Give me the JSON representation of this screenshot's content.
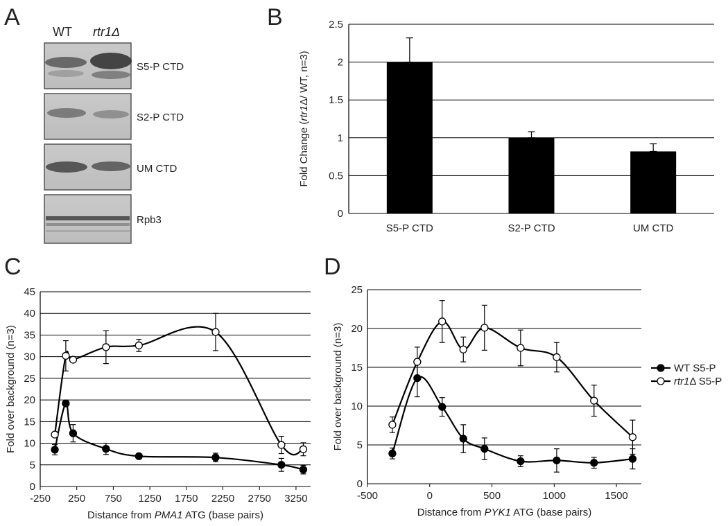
{
  "panels": {
    "A": "A",
    "B": "B",
    "C": "C",
    "D": "D"
  },
  "blot": {
    "lanes": [
      {
        "text": "WT",
        "italic": false
      },
      {
        "text": "rtr1Δ",
        "italic": true
      }
    ],
    "bands": [
      "S5-P CTD",
      "S2-P CTD",
      "UM CTD",
      "Rpb3"
    ]
  },
  "chart_data": [
    {
      "id": "B",
      "type": "bar",
      "categories": [
        "S5-P CTD",
        "S2-P CTD",
        "UM CTD"
      ],
      "values": [
        2.0,
        1.0,
        0.82
      ],
      "errors": [
        0.32,
        0.08,
        0.1
      ],
      "ylabel": {
        "pre": "Fold Change (",
        "ital": "rtr1",
        "post": "Δ/ WT, n=3)"
      },
      "ylim": [
        0,
        2.5
      ],
      "yticks": [
        0,
        0.5,
        1,
        1.5,
        2,
        2.5
      ],
      "ytick_labels": [
        "0",
        "0.5",
        "1",
        "1.5",
        "2",
        "2.5"
      ],
      "grid": true,
      "color": "#000000"
    },
    {
      "id": "C",
      "type": "line",
      "xlabel": {
        "pre": "Distance from ",
        "ital": "PMA1",
        "post": " ATG (base pairs)"
      },
      "ylabel": "Fold over background (n=3)",
      "xlim": [
        -250,
        3450
      ],
      "ylim": [
        0,
        45
      ],
      "xticks": [
        -250,
        250,
        750,
        1250,
        1750,
        2250,
        2750,
        3250
      ],
      "xtick_labels": [
        "-250",
        "250",
        "750",
        "1250",
        "1750",
        "2250",
        "2750",
        "3250"
      ],
      "yticks": [
        0,
        5,
        10,
        15,
        20,
        25,
        30,
        35,
        40,
        45
      ],
      "ytick_labels": [
        "0",
        "5",
        "10",
        "15",
        "20",
        "25",
        "30",
        "35",
        "40",
        "45"
      ],
      "grid": true,
      "series": [
        {
          "name": "WT S5-P",
          "marker": "filled",
          "x": [
            -50,
            100,
            200,
            650,
            1100,
            2150,
            3050,
            3350
          ],
          "y": [
            8.5,
            19.2,
            12.3,
            8.7,
            7.0,
            6.7,
            5.0,
            3.9
          ],
          "err": [
            1.2,
            0.4,
            2.0,
            1.3,
            0.3,
            1.0,
            1.5,
            1.0
          ]
        },
        {
          "name": "rtr1Δ S5-P",
          "marker": "open",
          "x": [
            -50,
            100,
            200,
            650,
            1100,
            2150,
            3050,
            3350
          ],
          "y": [
            12.0,
            30.2,
            29.3,
            32.2,
            32.6,
            35.7,
            9.6,
            8.6
          ],
          "err": [
            0.0,
            3.5,
            0.0,
            3.8,
            1.4,
            4.3,
            2.0,
            1.5
          ]
        }
      ]
    },
    {
      "id": "D",
      "type": "line",
      "xlabel": {
        "pre": "Distance from ",
        "ital": "PYK1",
        "post": " ATG (base pairs)"
      },
      "ylabel": "Fold over background (n=3)",
      "xlim": [
        -500,
        1700
      ],
      "ylim": [
        0,
        25
      ],
      "xticks": [
        -500,
        0,
        500,
        1000,
        1500
      ],
      "xtick_labels": [
        "-500",
        "0",
        "500",
        "1000",
        "1500"
      ],
      "yticks": [
        0,
        5,
        10,
        15,
        20,
        25
      ],
      "ytick_labels": [
        "0",
        "5",
        "10",
        "15",
        "20",
        "25"
      ],
      "grid": true,
      "series": [
        {
          "name": "WT S5-P",
          "marker": "filled",
          "x": [
            -300,
            -100,
            100,
            270,
            440,
            730,
            1020,
            1320,
            1630
          ],
          "y": [
            3.9,
            13.6,
            9.9,
            5.8,
            4.5,
            2.9,
            3.0,
            2.7,
            3.2
          ],
          "err": [
            0.7,
            2.4,
            1.2,
            1.8,
            1.4,
            0.7,
            1.5,
            0.7,
            1.3
          ]
        },
        {
          "name": "rtr1Δ S5-P",
          "marker": "open",
          "x": [
            -300,
            -100,
            100,
            270,
            440,
            730,
            1020,
            1320,
            1630
          ],
          "y": [
            7.6,
            15.7,
            20.9,
            17.3,
            20.1,
            17.5,
            16.3,
            10.7,
            6.0
          ],
          "err": [
            1.0,
            1.9,
            2.7,
            1.6,
            2.9,
            2.3,
            1.9,
            2.0,
            2.2
          ]
        }
      ]
    }
  ],
  "legend": [
    {
      "pre": "",
      "ital": "",
      "post": "WT S5-P",
      "marker": "filled"
    },
    {
      "pre": "",
      "ital": "rtr1",
      "post": "Δ S5-P",
      "marker": "open"
    }
  ]
}
